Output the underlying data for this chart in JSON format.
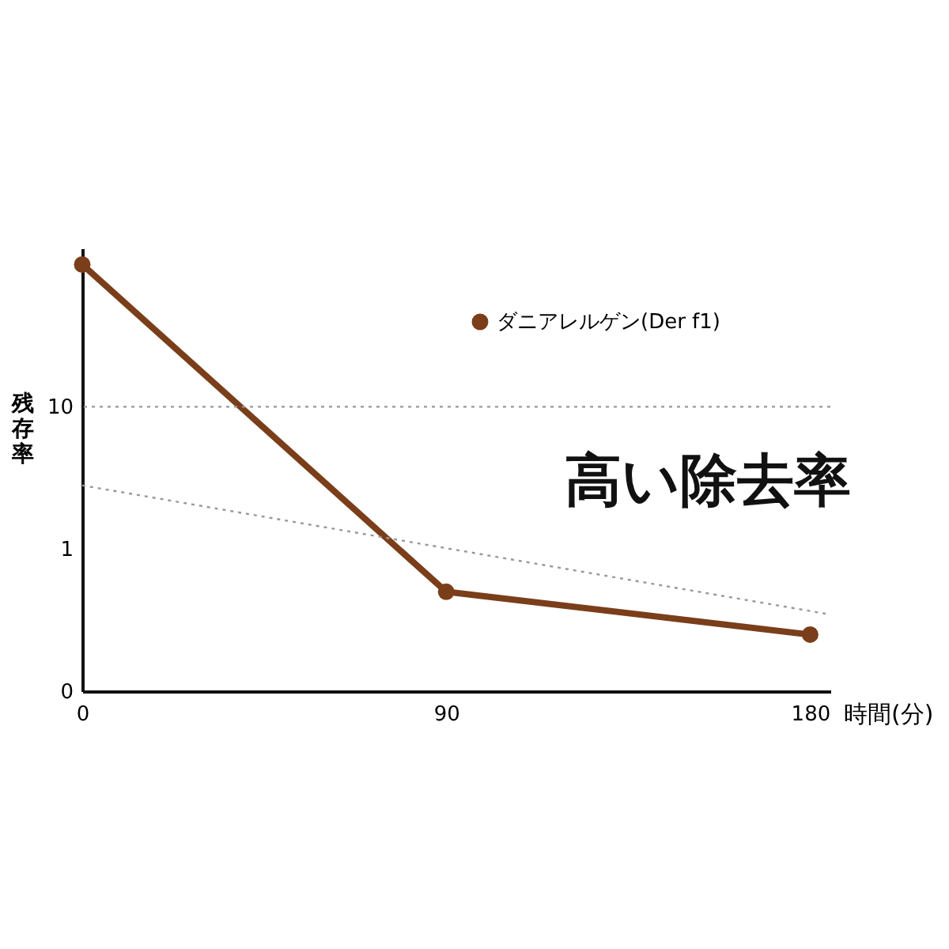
{
  "chart_data": {
    "type": "line",
    "xlabel": "時間(分)",
    "ylabel": "残存率",
    "x": [
      0,
      90,
      180
    ],
    "series": [
      {
        "name": "ダニアレルゲン(Der f1)",
        "color": "#7a3e1a",
        "values": [
          100,
          0.5,
          0.25
        ],
        "marker": "circle",
        "line_style": "solid"
      },
      {
        "type": "line",
        "color": "#999999",
        "x": [
          0,
          184
        ],
        "values": [
          2.8,
          0.35
        ],
        "marker": "none",
        "line_style": "dotted"
      }
    ],
    "log": "y",
    "xlim": [
      0,
      185
    ],
    "ylim": [
      0.1,
      130
    ],
    "xticks": [
      0,
      90,
      180
    ],
    "yticks": [
      {
        "value": 0.1,
        "label": "0"
      },
      1,
      10
    ],
    "ref_lines": [
      {
        "axis": "y",
        "value": 10,
        "color": "#999999",
        "line_style": "dotted"
      }
    ],
    "annotations": [
      "高い除去率"
    ],
    "grid": false,
    "legend": "top right"
  }
}
